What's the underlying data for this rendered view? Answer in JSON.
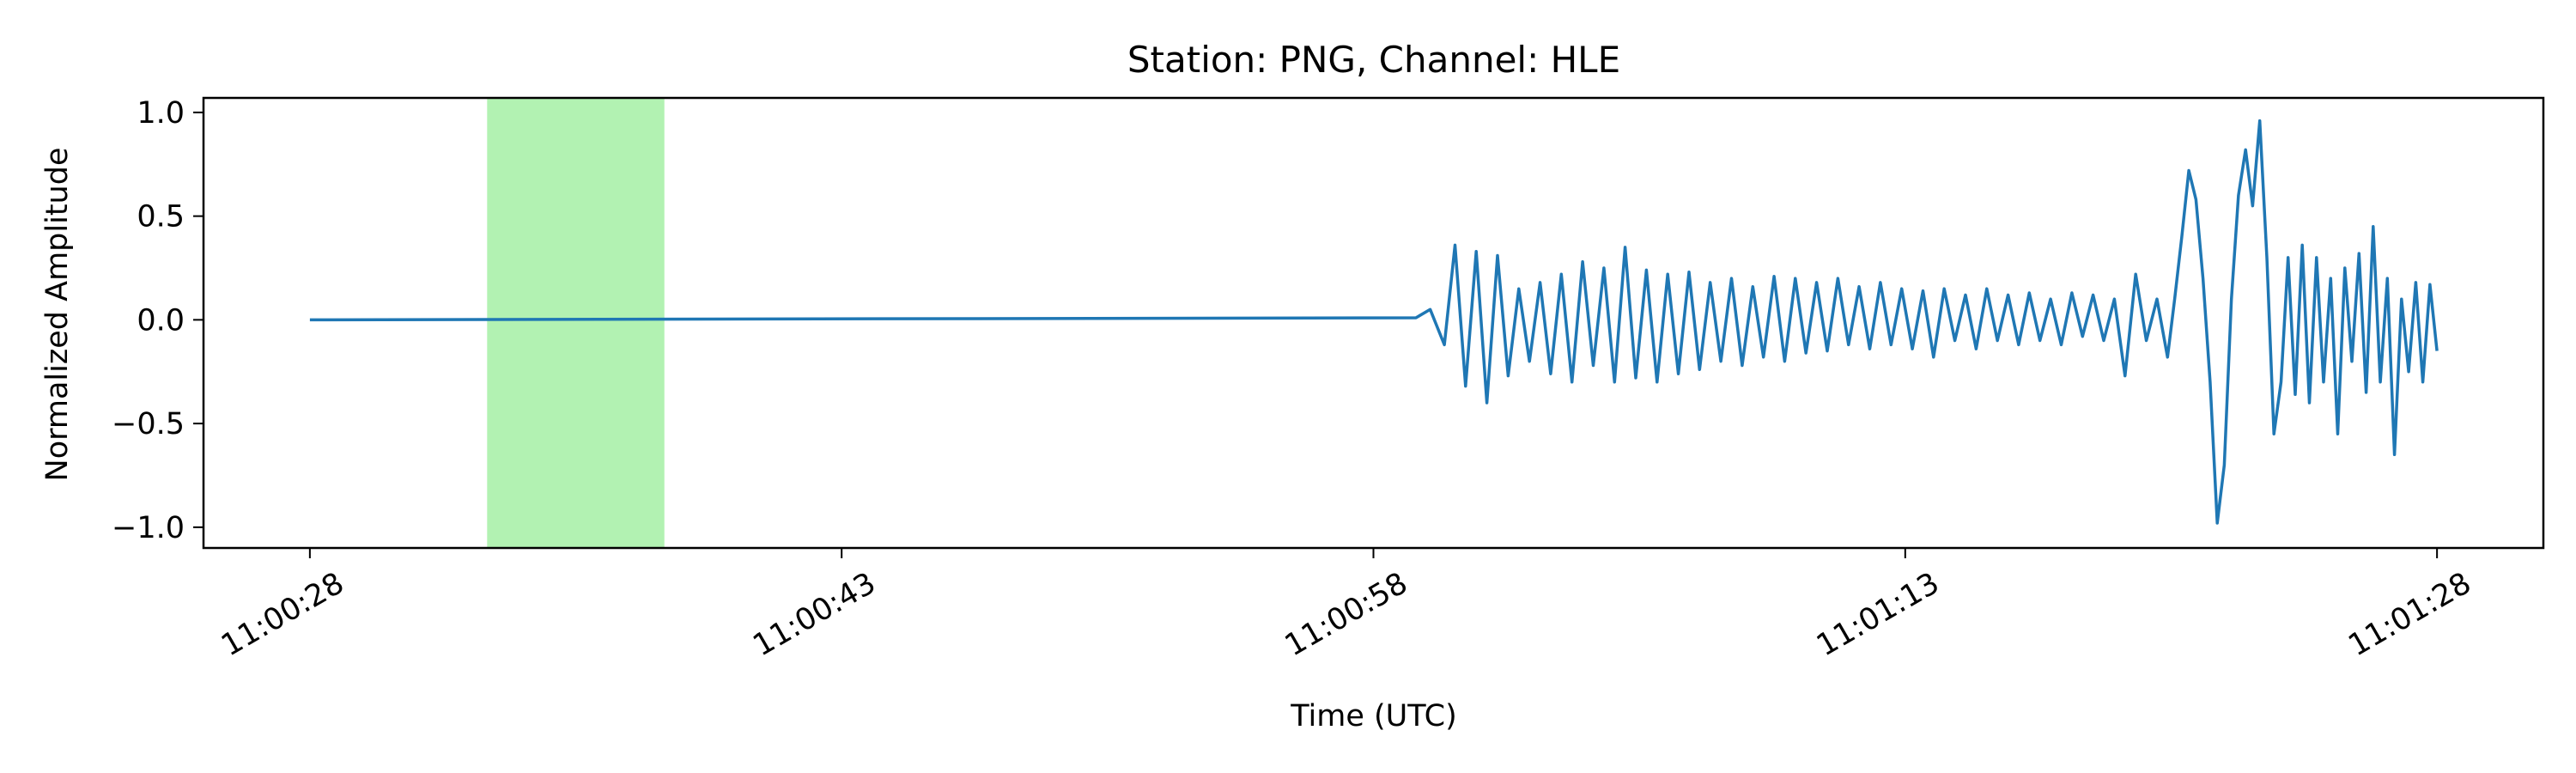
{
  "chart_data": {
    "type": "line",
    "title": "Station: PNG, Channel: HLE",
    "xlabel": "Time (UTC)",
    "ylabel": "Normalized Amplitude",
    "x_unit": "seconds",
    "xlim": [
      -3,
      63
    ],
    "ylim": [
      -1.1,
      1.07
    ],
    "x_ticks": [
      {
        "value": 0,
        "label": "11:00:28"
      },
      {
        "value": 15,
        "label": "11:00:43"
      },
      {
        "value": 30,
        "label": "11:00:58"
      },
      {
        "value": 45,
        "label": "11:01:13"
      },
      {
        "value": 60,
        "label": "11:01:28"
      }
    ],
    "y_ticks": [
      {
        "value": 1.0,
        "label": "1.0"
      },
      {
        "value": 0.5,
        "label": "0.5"
      },
      {
        "value": 0.0,
        "label": "0.0"
      },
      {
        "value": -0.5,
        "label": "−0.5"
      },
      {
        "value": -1.0,
        "label": "−1.0"
      }
    ],
    "highlight": {
      "x_start": 5.0,
      "x_end": 10.0,
      "color": "#b2f2b2"
    },
    "line_color": "#1f77b4",
    "grid": false,
    "series": [
      {
        "x": [
          0,
          31.2,
          31.6,
          32.0,
          32.3,
          32.6,
          32.9,
          33.2,
          33.5,
          33.8,
          34.1,
          34.4,
          34.7,
          35.0,
          35.3,
          35.6,
          35.9,
          36.2,
          36.5,
          36.8,
          37.1,
          37.4,
          37.7,
          38.0,
          38.3,
          38.6,
          38.9,
          39.2,
          39.5,
          39.8,
          40.1,
          40.4,
          40.7,
          41.0,
          41.3,
          41.6,
          41.9,
          42.2,
          42.5,
          42.8,
          43.1,
          43.4,
          43.7,
          44.0,
          44.3,
          44.6,
          44.9,
          45.2,
          45.5,
          45.8,
          46.1,
          46.4,
          46.7,
          47.0,
          47.3,
          47.6,
          47.9,
          48.2,
          48.5,
          48.8,
          49.1,
          49.4,
          49.7,
          50.0,
          50.3,
          50.6,
          50.9,
          51.2,
          51.5,
          51.8,
          52.1,
          52.4,
          52.6,
          52.8,
          53.0,
          53.2,
          53.4,
          53.6,
          53.8,
          54.0,
          54.2,
          54.4,
          54.6,
          54.8,
          55.0,
          55.2,
          55.4,
          55.6,
          55.8,
          56.0,
          56.2,
          56.4,
          56.6,
          56.8,
          57.0,
          57.2,
          57.4,
          57.6,
          57.8,
          58.0,
          58.2,
          58.4,
          58.6,
          58.8,
          59.0,
          59.2,
          59.4,
          59.6,
          59.8,
          60.0
        ],
        "y": [
          0.0,
          0.01,
          0.05,
          -0.12,
          0.36,
          -0.32,
          0.33,
          -0.4,
          0.31,
          -0.27,
          0.15,
          -0.2,
          0.18,
          -0.26,
          0.22,
          -0.3,
          0.28,
          -0.22,
          0.25,
          -0.3,
          0.35,
          -0.28,
          0.24,
          -0.3,
          0.22,
          -0.26,
          0.23,
          -0.24,
          0.18,
          -0.2,
          0.2,
          -0.22,
          0.16,
          -0.18,
          0.21,
          -0.2,
          0.2,
          -0.16,
          0.18,
          -0.15,
          0.2,
          -0.12,
          0.16,
          -0.14,
          0.18,
          -0.12,
          0.15,
          -0.14,
          0.14,
          -0.18,
          0.15,
          -0.1,
          0.12,
          -0.14,
          0.15,
          -0.1,
          0.12,
          -0.12,
          0.13,
          -0.1,
          0.1,
          -0.12,
          0.13,
          -0.08,
          0.12,
          -0.1,
          0.1,
          -0.27,
          0.22,
          -0.1,
          0.1,
          -0.18,
          0.1,
          0.4,
          0.72,
          0.58,
          0.2,
          -0.3,
          -0.98,
          -0.7,
          0.1,
          0.6,
          0.82,
          0.55,
          0.96,
          0.3,
          -0.55,
          -0.3,
          0.3,
          -0.36,
          0.36,
          -0.4,
          0.3,
          -0.3,
          0.2,
          -0.55,
          0.25,
          -0.2,
          0.32,
          -0.35,
          0.45,
          -0.3,
          0.2,
          -0.65,
          0.1,
          -0.25,
          0.18,
          -0.3,
          0.17,
          -0.15
        ]
      }
    ]
  }
}
